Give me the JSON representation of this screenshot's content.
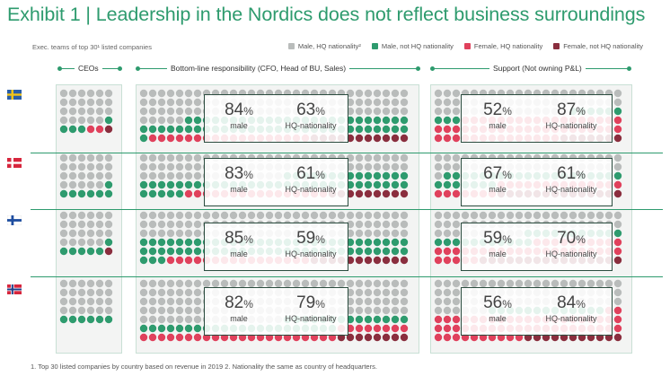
{
  "header": {
    "title": "Exhibit 1 | Leadership in the Nordics does not reflect business surroundings",
    "subtitle": "Exec. teams of top 30¹ listed companies"
  },
  "legend": [
    {
      "label": "Male, HQ nationality²",
      "color": "#b9bcbb"
    },
    {
      "label": "Male, not HQ nationality",
      "color": "#2e9b6e"
    },
    {
      "label": "Female, HQ nationality",
      "color": "#e0415c"
    },
    {
      "label": "Female, not HQ nationality",
      "color": "#8a2e3e"
    }
  ],
  "columns": {
    "ceos": "CEOs",
    "bottom_line": "Bottom-line responsibility (CFO, Head of BU, Sales)",
    "support": "Support (Not owning P&L)"
  },
  "stat_labels": {
    "male": "male",
    "hq": "HQ-nationality",
    "pct": "%"
  },
  "chart_data": {
    "type": "waffle",
    "title": "Leadership in the Nordics does not reflect business surroundings",
    "categories": [
      "Male, HQ nationality",
      "Male, not HQ nationality",
      "Female, HQ nationality",
      "Female, not HQ nationality"
    ],
    "rows": [
      {
        "country": "Sweden",
        "flag": "SE",
        "ceo_counts": [
          23,
          4,
          2,
          1
        ],
        "bottom_line": {
          "male": 84,
          "hq_nationality": 63
        },
        "support": {
          "male": 52,
          "hq_nationality": 87
        }
      },
      {
        "country": "Denmark",
        "flag": "DK",
        "ceo_counts": [
          23,
          7,
          0,
          0
        ],
        "bottom_line": {
          "male": 83,
          "hq_nationality": 61
        },
        "support": {
          "male": 67,
          "hq_nationality": 61
        }
      },
      {
        "country": "Finland",
        "flag": "FI",
        "ceo_counts": [
          23,
          6,
          0,
          1
        ],
        "bottom_line": {
          "male": 85,
          "hq_nationality": 59
        },
        "support": {
          "male": 59,
          "hq_nationality": 70
        }
      },
      {
        "country": "Norway",
        "flag": "NO",
        "ceo_counts": [
          24,
          6,
          0,
          0
        ],
        "bottom_line": {
          "male": 82,
          "hq_nationality": 79
        },
        "support": {
          "male": 56,
          "hq_nationality": 84
        }
      }
    ]
  },
  "footnote": "1. Top 30 listed companies by country based on revenue in 2019 2. Nationality the same as country of headquarters."
}
